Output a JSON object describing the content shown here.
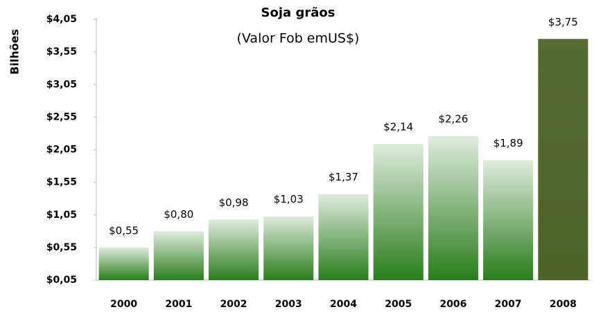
{
  "chart_data": {
    "type": "bar",
    "title": "Soja grãos",
    "subtitle": "(Valor Fob emUS$)",
    "y_label": "Bilhões",
    "categories": [
      "2000",
      "2001",
      "2002",
      "2003",
      "2004",
      "2005",
      "2006",
      "2007",
      "2008"
    ],
    "values": [
      0.55,
      0.8,
      0.98,
      1.03,
      1.37,
      2.14,
      2.26,
      1.89,
      3.75
    ],
    "value_labels": [
      "$0,55",
      "$0,80",
      "$0,98",
      "$1,03",
      "$1,37",
      "$2,14",
      "$2,26",
      "$1,89",
      "$3,75"
    ],
    "colors": [
      "#2a7d1c",
      "#2a7d1c",
      "#2a7d1c",
      "#2a7d1c",
      "#2a7d1c",
      "#2a7d1c",
      "#2a7d1c",
      "#2a7d1c",
      "#4f6228"
    ],
    "ylim": [
      0.05,
      4.05
    ],
    "yticks": [
      {
        "value": 0.05,
        "label": "$0,05"
      },
      {
        "value": 0.55,
        "label": "$0,55"
      },
      {
        "value": 1.05,
        "label": "$1,05"
      },
      {
        "value": 1.55,
        "label": "$1,55"
      },
      {
        "value": 2.05,
        "label": "$2,05"
      },
      {
        "value": 2.55,
        "label": "$2,55"
      },
      {
        "value": 3.05,
        "label": "$3,05"
      },
      {
        "value": 3.55,
        "label": "$3,55"
      },
      {
        "value": 4.05,
        "label": "$4,05"
      }
    ],
    "grid": false
  }
}
